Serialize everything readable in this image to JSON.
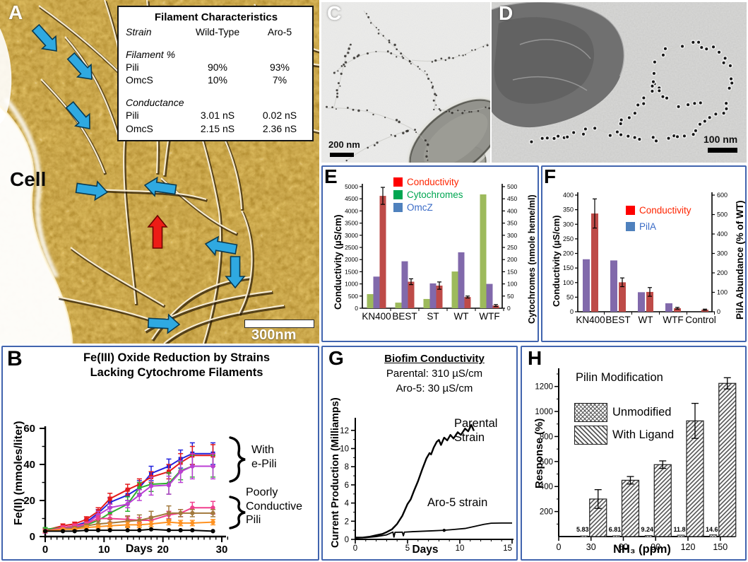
{
  "panel_a": {
    "label": "A",
    "cell_label": "Cell",
    "scale_bar_label": "300nm",
    "arrow_colors": {
      "filament_blue": "#2fa9e1",
      "omcs_red": "#ed1c16"
    },
    "arrows": {
      "blue": [
        {
          "tip": [
            80,
            72
          ],
          "angle": 48
        },
        {
          "tip": [
            130,
            112
          ],
          "angle": 48
        },
        {
          "tip": [
            127,
            182
          ],
          "angle": 50
        },
        {
          "tip": [
            152,
            272
          ],
          "angle": 8
        },
        {
          "tip": [
            205,
            262
          ],
          "angle": 188
        },
        {
          "tip": [
            291,
            345
          ],
          "angle": 190
        },
        {
          "tip": [
            333,
            407
          ],
          "angle": 90
        },
        {
          "tip": [
            254,
            459
          ],
          "angle": 3
        }
      ],
      "red": [
        {
          "tip": [
            223,
            305
          ],
          "angle": -90
        }
      ]
    },
    "table": {
      "title": "Filament Characteristics",
      "col_headers": [
        "Strain",
        "Wild-Type",
        "Aro-5"
      ],
      "sections": [
        {
          "header": "Filament %",
          "rows": [
            [
              "Pili",
              "90%",
              "93%"
            ],
            [
              "OmcS",
              "10%",
              "7%"
            ]
          ]
        },
        {
          "header": "Conductance",
          "rows": [
            [
              "Pili",
              "3.01 nS",
              "0.02 nS"
            ],
            [
              "OmcS",
              "2.15 nS",
              "2.36 nS"
            ]
          ]
        }
      ]
    }
  },
  "panel_c": {
    "label": "C",
    "scale_bar_label": "200 nm"
  },
  "panel_d": {
    "label": "D",
    "scale_bar_label": "100 nm"
  },
  "chart_data": [
    {
      "id": "B",
      "type": "line",
      "title_lines": [
        "Fe(III) Oxide Reduction by Strains",
        "Lacking Cytochrome Filaments"
      ],
      "xlabel": "Days",
      "ylabel": "Fe(II) (mmoles/liter)",
      "xlim": [
        0,
        31
      ],
      "ylim": [
        0,
        60
      ],
      "xticks": [
        0,
        10,
        20,
        30
      ],
      "yticks": [
        0,
        20,
        40,
        60
      ],
      "x": [
        0,
        3,
        5,
        7,
        9,
        11,
        14,
        16,
        18,
        21,
        23,
        25,
        28.5
      ],
      "series": [
        {
          "name": "with-e-pili-blue",
          "color": "#2222dd",
          "values": [
            3,
            5,
            6,
            8,
            13,
            19,
            23,
            27,
            35,
            39,
            43,
            46,
            46
          ],
          "err": [
            1,
            1,
            1,
            1.5,
            2,
            2.5,
            3,
            4,
            4,
            4,
            5,
            6,
            6
          ]
        },
        {
          "name": "with-e-pili-red",
          "color": "#e41a1c",
          "values": [
            3.5,
            6,
            7,
            9.5,
            14,
            21,
            26,
            29,
            33,
            36,
            41,
            45,
            45
          ],
          "err": [
            1,
            1,
            1,
            1.5,
            2,
            3,
            3,
            3,
            3,
            4,
            5,
            5,
            6
          ]
        },
        {
          "name": "with-e-pili-green",
          "color": "#2db22d",
          "values": [
            4,
            5,
            5,
            6.5,
            9,
            13,
            18,
            27,
            29,
            29.5,
            36.5,
            39,
            39
          ],
          "err": [
            1,
            1,
            1,
            1,
            2,
            3,
            4,
            3,
            4,
            6,
            5,
            6,
            6
          ]
        },
        {
          "name": "with-e-pili-magenta",
          "color": "#bb3fd4",
          "values": [
            3,
            4,
            5,
            7,
            12,
            16,
            18,
            23,
            28,
            28.5,
            36,
            39,
            39
          ],
          "err": [
            1,
            1,
            1,
            1,
            2,
            2,
            2,
            3,
            5,
            5,
            6,
            7,
            7
          ]
        },
        {
          "name": "poorly-conductive-pink",
          "color": "#f03f8e",
          "values": [
            3,
            5,
            6,
            7,
            10,
            10,
            9.5,
            9,
            9,
            12,
            13,
            16,
            16
          ],
          "err": [
            1,
            1,
            1,
            1,
            1.5,
            2,
            1.5,
            1.5,
            2,
            2,
            2,
            3,
            3.5
          ]
        },
        {
          "name": "poorly-conductive-brown",
          "color": "#a2793c",
          "values": [
            3,
            4,
            4.5,
            6,
            7,
            7.5,
            8.5,
            9,
            10.5,
            13,
            13,
            13,
            13
          ],
          "err": [
            0.5,
            0.5,
            1,
            1,
            1.5,
            2,
            3,
            3,
            3.5,
            4,
            2,
            2,
            2
          ]
        },
        {
          "name": "poorly-conductive-orange",
          "color": "#ff9221",
          "values": [
            3,
            4,
            4,
            5,
            5.5,
            6,
            6.5,
            6.5,
            7,
            8,
            7.5,
            7.5,
            8
          ],
          "err": [
            0.5,
            0.5,
            0.5,
            1,
            1,
            1.5,
            1.5,
            1.5,
            1.5,
            1.5,
            1.5,
            1.5,
            1.5
          ]
        },
        {
          "name": "control-black",
          "color": "#000000",
          "values": [
            3,
            3,
            3,
            3.5,
            3.5,
            3.5,
            3.5,
            3.5,
            4,
            3.5,
            3.5,
            3.5,
            3
          ],
          "err": [
            0,
            0,
            0,
            0,
            0,
            0,
            0,
            0,
            0,
            0,
            0,
            0,
            0
          ]
        }
      ],
      "annotations": [
        {
          "lines": [
            "With",
            "e-Pili"
          ]
        },
        {
          "lines": [
            "Poorly",
            "Conductive",
            "Pili"
          ]
        }
      ]
    },
    {
      "id": "E",
      "type": "bar",
      "categories": [
        "KN400",
        "BEST",
        "ST",
        "WT",
        "WTF"
      ],
      "ylabel_left": "Conductivity (µS/cm)",
      "ylabel_right": "Cytochromes (nmole heme/ml)",
      "ylim_left": [
        0,
        5000
      ],
      "ytick_step_left": 500,
      "ylim_right": [
        0,
        500
      ],
      "ytick_step_right": 50,
      "legend": [
        {
          "label": "Conductivity",
          "color": "#fe0000"
        },
        {
          "label": "Cytochromes",
          "color": "#00a651"
        },
        {
          "label": "OmcZ",
          "color": "#4f81bd"
        }
      ],
      "series": [
        {
          "name": "Cytochromes",
          "axis": "right",
          "color": "#9dba5c",
          "values": [
            58,
            23,
            38,
            151,
            468
          ]
        },
        {
          "name": "OmcZ",
          "axis": "left",
          "color": "#8169ab",
          "values": [
            1300,
            1930,
            1020,
            2300,
            1000
          ]
        },
        {
          "name": "Conductivity",
          "axis": "left",
          "color": "#be4b48",
          "values": [
            4620,
            1090,
            930,
            460,
            110
          ],
          "err": [
            350,
            120,
            150,
            40,
            40
          ]
        }
      ]
    },
    {
      "id": "F",
      "type": "bar",
      "categories": [
        "KN400",
        "BEST",
        "WT",
        "WTF",
        "Control"
      ],
      "ylabel_left": "Conductivity (µS/cm)",
      "ylabel_right": "PilA Abundance (% of WT)",
      "ylim_left": [
        0,
        400
      ],
      "ytick_step_left": 50,
      "ylim_right": [
        0,
        600
      ],
      "ytick_step_right": 100,
      "legend": [
        {
          "label": "Conductivity",
          "color": "#fe0000"
        },
        {
          "label": "PilA",
          "color": "#4f81bd"
        }
      ],
      "series": [
        {
          "name": "PilA",
          "axis": "left",
          "color": "#8169ab",
          "values": [
            180,
            176,
            67,
            29,
            0
          ]
        },
        {
          "name": "Conductivity",
          "axis": "left",
          "color": "#be4b48",
          "values": [
            337,
            101,
            68,
            12,
            7
          ],
          "err": [
            50,
            15,
            15,
            3,
            2
          ]
        }
      ]
    },
    {
      "id": "G",
      "type": "line",
      "title": "Biofim Conductivity",
      "subtitle_lines": [
        "Parental: 310 µS/cm",
        "Aro-5: 30 µS/cm"
      ],
      "xlabel": "Days",
      "ylabel": "Current Production (Milliamps)",
      "xlim": [
        0,
        15
      ],
      "ylim": [
        0,
        13
      ],
      "xticks": [
        0,
        5,
        10,
        15
      ],
      "yticks": [
        0,
        2,
        4,
        6,
        8,
        10,
        12
      ],
      "series": [
        {
          "name": "Parental Strain",
          "label_lines": [
            "Parental",
            "Strain"
          ],
          "color": "#000000",
          "points": [
            [
              0,
              0.2
            ],
            [
              0.7,
              0.2
            ],
            [
              1.4,
              0.3
            ],
            [
              2,
              0.45
            ],
            [
              2.6,
              0.6
            ],
            [
              3,
              0.8
            ],
            [
              3.5,
              1.1
            ],
            [
              4,
              1.7
            ],
            [
              4.5,
              2.6
            ],
            [
              5,
              3.9
            ],
            [
              5.3,
              4.4
            ],
            [
              5.6,
              5.3
            ],
            [
              6,
              6.4
            ],
            [
              6.4,
              7.7
            ],
            [
              6.8,
              8.9
            ],
            [
              7.1,
              9.5
            ],
            [
              7.25,
              9.35
            ],
            [
              7.5,
              10.1
            ],
            [
              7.8,
              10.75
            ],
            [
              8,
              10.95
            ],
            [
              8.2,
              10.4
            ],
            [
              8.5,
              11.2
            ],
            [
              8.8,
              10.9
            ],
            [
              9.1,
              11.5
            ],
            [
              9.4,
              11.1
            ],
            [
              9.8,
              11.8
            ],
            [
              10.1,
              11.5
            ],
            [
              10.5,
              12.2
            ],
            [
              10.8,
              11.9
            ],
            [
              11.1,
              12.6
            ],
            [
              11.35,
              11.95
            ]
          ]
        },
        {
          "name": "Aro-5 strain",
          "label_lines": [
            "Aro-5 strain"
          ],
          "color": "#000000",
          "points": [
            [
              0,
              0.15
            ],
            [
              1,
              0.2
            ],
            [
              2,
              0.3
            ],
            [
              3,
              0.5
            ],
            [
              3.6,
              0.8
            ],
            [
              3.7,
              0.25
            ],
            [
              3.8,
              0.78
            ],
            [
              4.5,
              0.8
            ],
            [
              4.6,
              0.4
            ],
            [
              4.7,
              0.8
            ],
            [
              5.5,
              0.85
            ],
            [
              6.5,
              0.9
            ],
            [
              7.5,
              0.95
            ],
            [
              8.5,
              1.0
            ],
            [
              9.5,
              1.1
            ],
            [
              10.5,
              1.2
            ],
            [
              11.5,
              1.45
            ],
            [
              12.3,
              1.65
            ],
            [
              13,
              1.78
            ],
            [
              14,
              1.8
            ],
            [
              15,
              1.8
            ]
          ]
        }
      ]
    },
    {
      "id": "H",
      "type": "bar",
      "title": "Pilin Modification",
      "xlabel": "NH₃ (ppm)",
      "ylabel": "Response (%)",
      "categories": [
        30,
        60,
        90,
        120,
        150
      ],
      "xticks": [
        0,
        30,
        60,
        90,
        120,
        150
      ],
      "ylim": [
        0,
        1300
      ],
      "yticks": [
        200,
        400,
        600,
        800,
        1000,
        1200
      ],
      "legend": [
        {
          "label": "Unmodified",
          "pattern": "crosshatch"
        },
        {
          "label": "With Ligand",
          "pattern": "diagonal"
        }
      ],
      "series": [
        {
          "name": "Unmodified",
          "pattern": "crosshatch",
          "values": [
            5.83,
            6.81,
            9.24,
            11.8,
            14.6
          ],
          "value_labels": [
            "5.83",
            "6.81",
            "9.24",
            "11.8",
            "14.6"
          ]
        },
        {
          "name": "With Ligand",
          "pattern": "diagonal",
          "values": [
            300,
            450,
            575,
            925,
            1225
          ],
          "err": [
            75,
            30,
            30,
            140,
            45
          ]
        }
      ]
    }
  ]
}
